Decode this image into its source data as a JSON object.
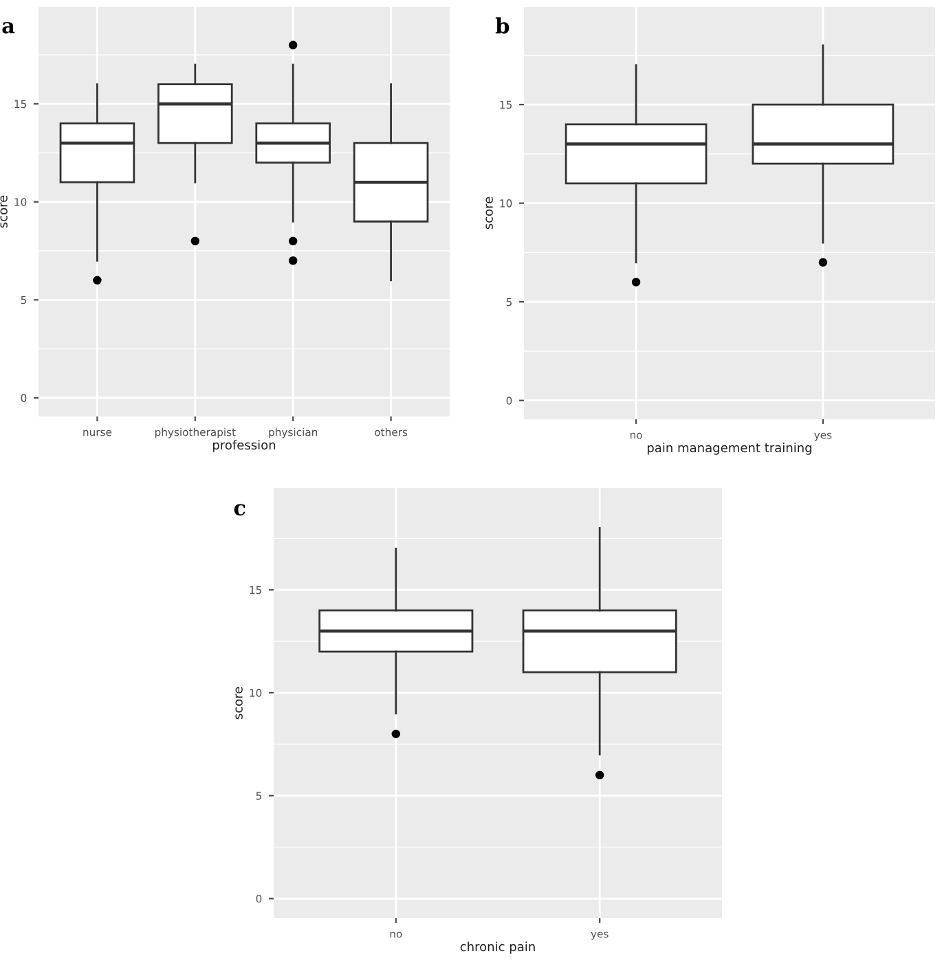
{
  "chart_data": [
    {
      "type": "box",
      "title": "a",
      "xlabel": "profession",
      "ylabel": "score",
      "categories": [
        "nurse",
        "physiotherapist",
        "physician",
        "others"
      ],
      "ylim": [
        -0.95,
        19.95
      ],
      "yticks": [
        0,
        5,
        10,
        15
      ],
      "grid": true,
      "color": "#ffffff",
      "boxes": [
        {
          "low": 7,
          "q1": 11,
          "median": 13,
          "q3": 14,
          "high": 16,
          "outliers": [
            6
          ]
        },
        {
          "low": 11,
          "q1": 13,
          "median": 15,
          "q3": 16,
          "high": 17,
          "outliers": [
            8
          ]
        },
        {
          "low": 9,
          "q1": 12,
          "median": 13,
          "q3": 14,
          "high": 17,
          "outliers": [
            7,
            8,
            18
          ]
        },
        {
          "low": 6,
          "q1": 9,
          "median": 11,
          "q3": 13,
          "high": 16
        }
      ]
    },
    {
      "type": "box",
      "title": "b",
      "xlabel": "pain management training",
      "ylabel": "score",
      "categories": [
        "no",
        "yes"
      ],
      "ylim": [
        -0.95,
        19.95
      ],
      "yticks": [
        0,
        5,
        10,
        15
      ],
      "grid": true,
      "color": "#ffffff",
      "boxes": [
        {
          "low": 7,
          "q1": 11,
          "median": 13,
          "q3": 14,
          "high": 17,
          "outliers": [
            6
          ]
        },
        {
          "low": 8,
          "q1": 12,
          "median": 13,
          "q3": 15,
          "high": 18,
          "outliers": [
            7
          ]
        }
      ]
    },
    {
      "type": "box",
      "title": "c",
      "xlabel": "chronic pain",
      "ylabel": "score",
      "categories": [
        "no",
        "yes"
      ],
      "ylim": [
        -0.95,
        19.95
      ],
      "yticks": [
        0,
        5,
        10,
        15
      ],
      "grid": true,
      "color": "#ffffff",
      "boxes": [
        {
          "low": 9,
          "q1": 12,
          "median": 13,
          "q3": 14,
          "high": 17,
          "outliers": [
            8
          ]
        },
        {
          "low": 7,
          "q1": 11,
          "median": 13,
          "q3": 14,
          "high": 18,
          "outliers": [
            6
          ]
        }
      ]
    }
  ]
}
